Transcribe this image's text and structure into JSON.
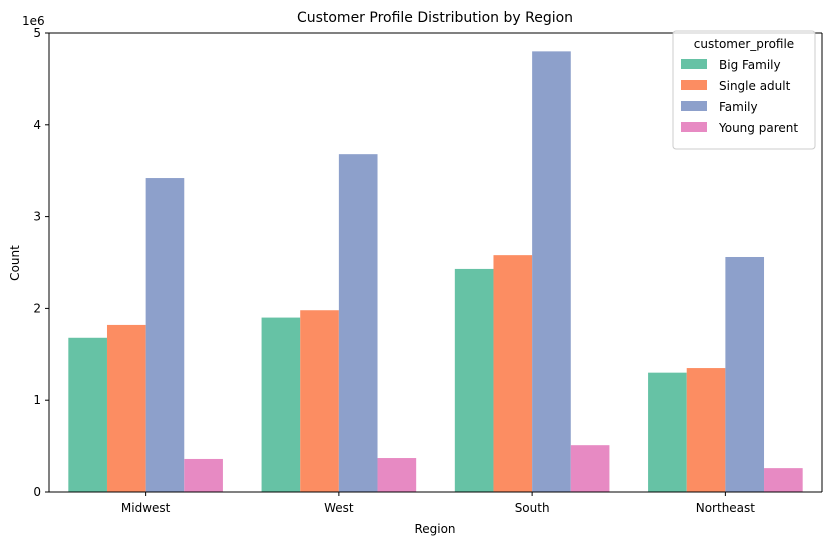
{
  "chart_data": {
    "type": "bar",
    "title": "Customer Profile Distribution by Region",
    "xlabel": "Region",
    "ylabel": "Count",
    "y_scale_label": "1e6",
    "categories": [
      "Midwest",
      "West",
      "South",
      "Northeast"
    ],
    "ylim": [
      0,
      5
    ],
    "yticks": [
      0,
      1,
      2,
      3,
      4,
      5
    ],
    "grid": false,
    "legend": {
      "title": "customer_profile",
      "placement": "top-right"
    },
    "series": [
      {
        "name": "Big Family",
        "color": "#66c2a5",
        "values": [
          1.68,
          1.9,
          2.43,
          1.3
        ]
      },
      {
        "name": "Single adult",
        "color": "#fc8d62",
        "values": [
          1.82,
          1.98,
          2.58,
          1.35
        ]
      },
      {
        "name": "Family",
        "color": "#8da0cb",
        "values": [
          3.42,
          3.68,
          4.8,
          2.56
        ]
      },
      {
        "name": "Young parent",
        "color": "#e78ac3",
        "values": [
          0.36,
          0.37,
          0.51,
          0.26
        ]
      }
    ]
  }
}
